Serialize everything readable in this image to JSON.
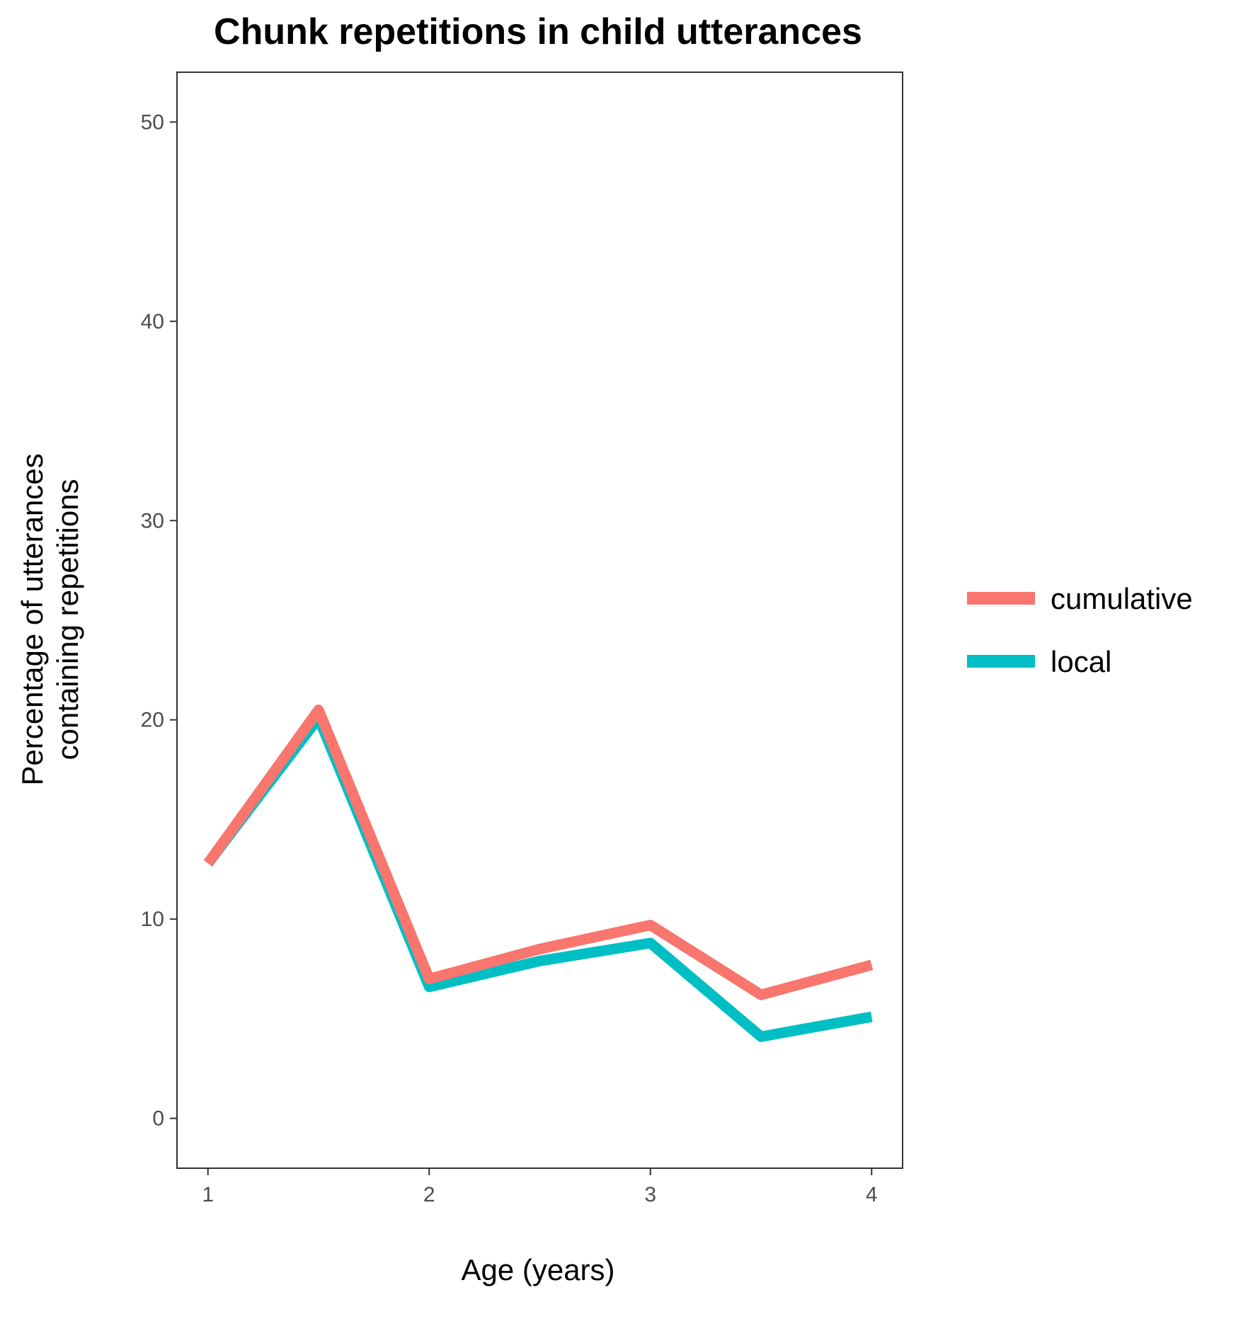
{
  "chart_data": {
    "type": "line",
    "title": "Chunk repetitions in child utterances",
    "xlabel": "Age (years)",
    "ylabel_lines": [
      "Percentage of utterances",
      "containing repetitions"
    ],
    "x": [
      1,
      1.5,
      2,
      2.5,
      3,
      3.5,
      4
    ],
    "xlim": [
      0.86,
      4.14
    ],
    "ylim": [
      -2.5,
      52.5
    ],
    "x_ticks": [
      "1",
      "2",
      "3",
      "4"
    ],
    "y_ticks": [
      "0",
      "10",
      "20",
      "30",
      "40",
      "50"
    ],
    "grid": false,
    "legend_position": "right",
    "series": [
      {
        "name": "cumulative",
        "color": "#F8766D",
        "values": [
          12.8,
          20.5,
          7.0,
          8.5,
          9.7,
          6.2,
          7.7
        ]
      },
      {
        "name": "local",
        "color": "#00BFC4",
        "values": [
          12.8,
          20.1,
          6.6,
          7.9,
          8.8,
          4.1,
          5.1
        ]
      }
    ]
  }
}
